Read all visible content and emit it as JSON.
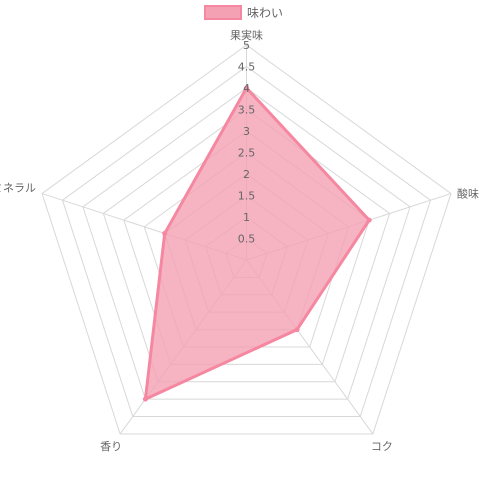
{
  "chart_data": {
    "type": "radar",
    "categories": [
      "果実味",
      "酸味",
      "コク",
      "香り",
      "ミネラル"
    ],
    "series": [
      {
        "name": "味わい",
        "values": [
          4,
          3,
          2,
          4,
          2
        ]
      }
    ],
    "rlim": [
      0,
      5
    ],
    "ticks": [
      "0.5",
      "1",
      "1.5",
      "2",
      "2.5",
      "3",
      "3.5",
      "4",
      "4.5",
      "5"
    ],
    "tick_values": [
      0.5,
      1,
      1.5,
      2,
      2.5,
      3,
      3.5,
      4,
      4.5,
      5
    ],
    "grid": true,
    "legend_position": "top",
    "colors": {
      "fill": "#f4a1b4",
      "stroke": "#f587a0",
      "grid": "#d8d8d8",
      "text": "#666666"
    }
  }
}
